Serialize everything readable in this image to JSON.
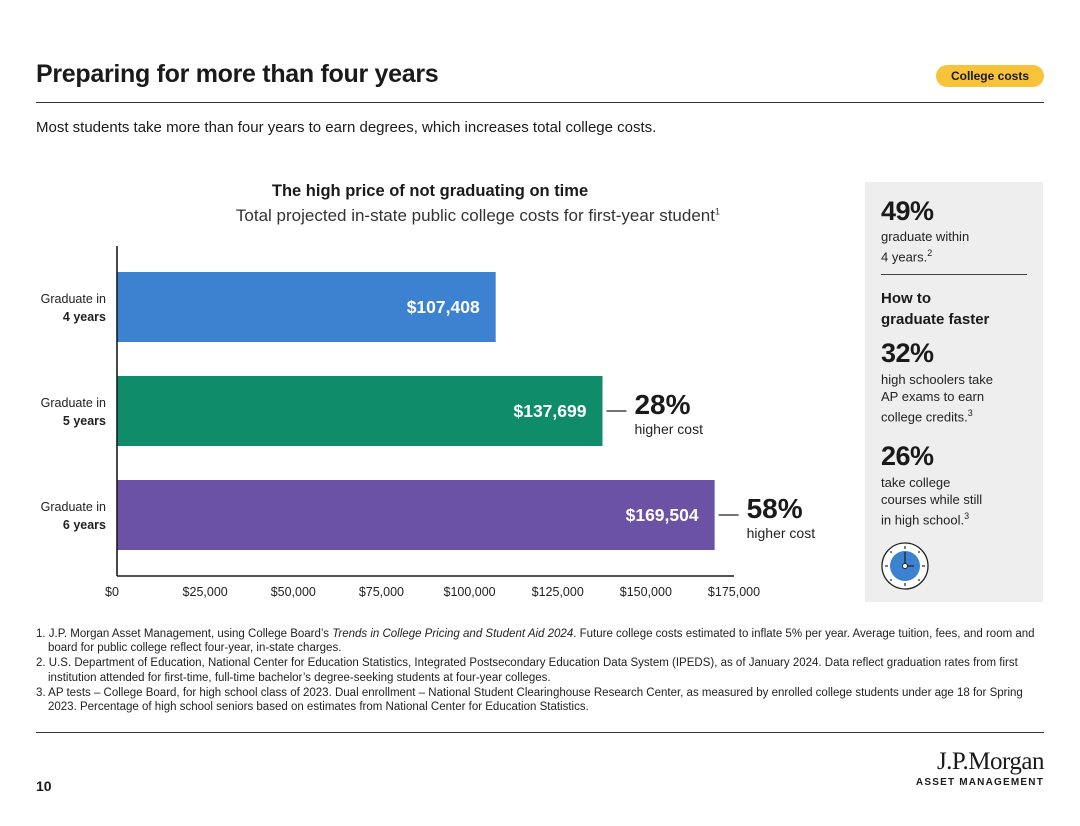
{
  "page": {
    "title": "Preparing for more than four years",
    "badge": "College costs",
    "subtitle": "Most students take more than four years to earn degrees, which increases total college costs.",
    "page_number": "10"
  },
  "colors": {
    "accent": "#f6c33a",
    "bar_4yr": "#3d82d1",
    "bar_5yr": "#0f8c6a",
    "bar_6yr": "#6b52a5"
  },
  "chart_data": {
    "type": "bar",
    "orientation": "horizontal",
    "title": "The high price of not graduating on time",
    "subtitle": "Total projected in-state public college costs for first-year student",
    "subtitle_footnote": "1",
    "categories": [
      {
        "line1": "Graduate in",
        "line2": "4 years"
      },
      {
        "line1": "Graduate in",
        "line2": "5 years"
      },
      {
        "line1": "Graduate in",
        "line2": "6 years"
      }
    ],
    "values": [
      107408,
      137699,
      169504
    ],
    "value_labels": [
      "$107,408",
      "$137,699",
      "$169,504"
    ],
    "callouts": [
      null,
      {
        "pct": "28%",
        "text": "higher cost"
      },
      {
        "pct": "58%",
        "text": "higher cost"
      }
    ],
    "xlim": [
      0,
      175000
    ],
    "xticks": [
      0,
      25000,
      50000,
      75000,
      100000,
      125000,
      150000,
      175000
    ],
    "xtick_labels": [
      "$0",
      "$25,000",
      "$50,000",
      "$75,000",
      "$100,000",
      "$125,000",
      "$150,000",
      "$175,000"
    ],
    "bar_colors": [
      "#3d82d1",
      "#0f8c6a",
      "#6b52a5"
    ]
  },
  "sidebar": {
    "stat1": "49%",
    "stat1_text_a": "graduate within",
    "stat1_text_b": "4 years.",
    "stat1_sup": "2",
    "heading_a": "How to",
    "heading_b": "graduate faster",
    "stat2": "32%",
    "stat2_text_a": "high schoolers take",
    "stat2_text_b": "AP exams to earn",
    "stat2_text_c": "college credits.",
    "stat2_sup": "3",
    "stat3": "26%",
    "stat3_text_a": "take college",
    "stat3_text_b": "courses while still",
    "stat3_text_c": "in high school.",
    "stat3_sup": "3",
    "icon": "clock-icon"
  },
  "footnotes": {
    "fn1_pre": "1. J.P. Morgan Asset Management, using College Board’s ",
    "fn1_italic": "Trends in College Pricing and Student Aid 2024",
    "fn1_post": ". Future college costs estimated to inflate 5% per year. Average tuition, fees, and room and board for public college reflect four-year, in-state charges.",
    "fn2": "2. U.S. Department of Education, National Center for Education Statistics, Integrated Postsecondary Education Data System (IPEDS), as of January 2024. Data reflect graduation rates from first institution attended for first-time, full-time bachelor’s degree-seeking students at four-year colleges.",
    "fn3": "3. AP tests – College Board, for high school class of 2023. Dual enrollment – National Student Clearinghouse Research Center, as measured by enrolled college students under age 18 for Spring 2023. Percentage of high school seniors based on estimates from National Center for Education Statistics."
  },
  "logo": {
    "main": "J.P.Morgan",
    "sub": "ASSET MANAGEMENT"
  }
}
